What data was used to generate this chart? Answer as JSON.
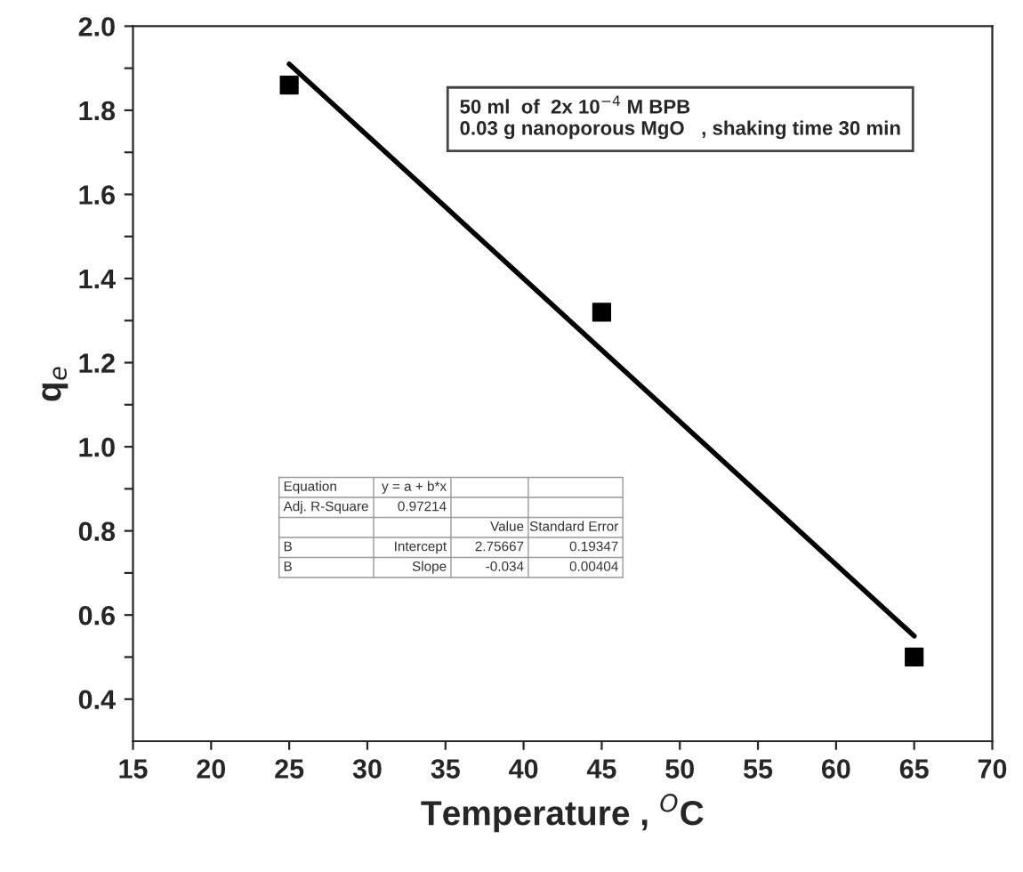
{
  "chart_data": {
    "type": "scatter",
    "xlabel": "Temperature , $^{O}$C",
    "ylabel": "q$_{e}$",
    "x": [
      25,
      45,
      65
    ],
    "series": [
      {
        "color": "#000000",
        "marker": "square",
        "values": [
          1.86,
          1.32,
          0.5
        ]
      },
      {
        "type": "line",
        "color": "#000000",
        "marker": "none",
        "line_style": "solid",
        "x": [
          25,
          65
        ],
        "values": [
          1.91,
          0.55
        ]
      }
    ],
    "xlim": [
      15,
      70
    ],
    "xticks": [
      15,
      20,
      25,
      30,
      35,
      40,
      45,
      50,
      55,
      60,
      65,
      70
    ],
    "ylim": [
      0.3,
      2.0
    ],
    "yticks": [
      0.4,
      {
        "value": 0.5,
        "label": null
      },
      0.6,
      {
        "value": 0.7,
        "label": null
      },
      0.8,
      {
        "value": 0.9,
        "label": null
      },
      {
        "value": 1.0,
        "label": "1.0"
      },
      {
        "value": 1.1,
        "label": null
      },
      1.2,
      {
        "value": 1.3,
        "label": null
      },
      1.4,
      {
        "value": 1.5,
        "label": null
      },
      1.6,
      {
        "value": 1.7,
        "label": null
      },
      1.8,
      {
        "value": 1.9,
        "label": null
      },
      {
        "value": 2.0,
        "label": "2.0"
      }
    ],
    "grid": false,
    "annotations": [
      "50 ml  of  2x 10$^{−4}$ M BPB\n0.03 g nanoporous MgO   , shaking time 30 min",
      "Equation",
      "y = a + b*x",
      "Adj. R-Square",
      "0.97214",
      "Value",
      "Standard Error",
      "B",
      "Intercept",
      "2.75667",
      "0.19347",
      "B",
      "Slope",
      "-0.034",
      "0.00404"
    ]
  }
}
